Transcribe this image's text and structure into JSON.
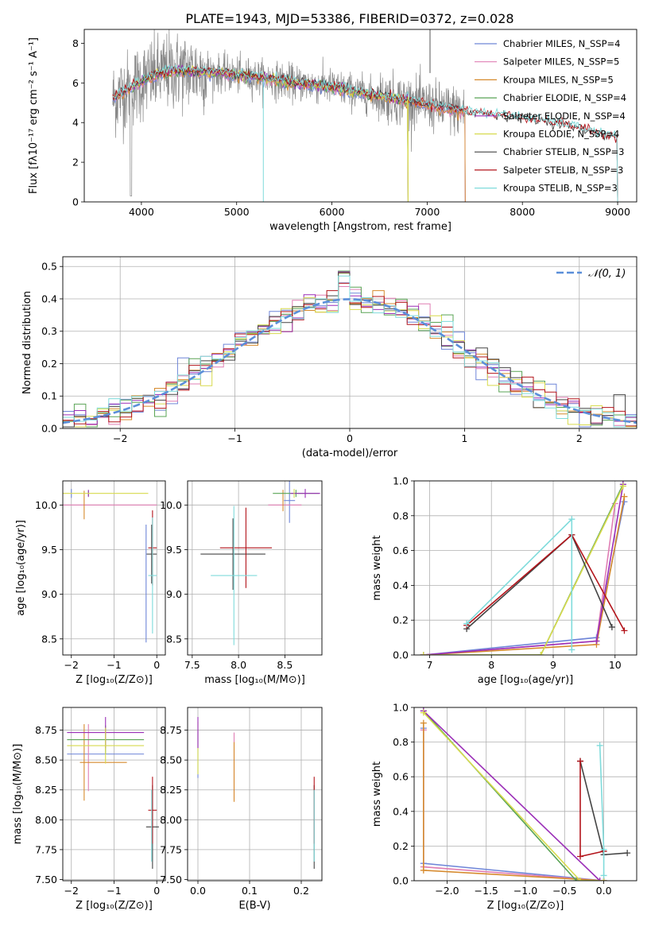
{
  "figure": {
    "title": "PLATE=1943, MJD=53386, FIBERID=0372, z=0.028"
  },
  "series_colors": {
    "Chabrier MILES": "#6f86d8",
    "Salpeter MILES": "#e07fb4",
    "Kroupa MILES": "#d68a2d",
    "Chabrier ELODIE": "#5aa455",
    "Salpeter ELODIE": "#9b2fb8",
    "Kroupa ELODIE": "#d7da4d",
    "Chabrier STELIB": "#444444",
    "Salpeter STELIB": "#b3141b",
    "Kroupa STELIB": "#7fdbdb",
    "data": "#888888",
    "normal": "#5b8fd9"
  },
  "chart_data": [
    {
      "id": "spectrum",
      "type": "line",
      "xlabel": "wavelength [Angstrom, rest frame]",
      "ylabel": "Flux [fλ10⁻¹⁷ erg cm⁻² s⁻¹ A⁻¹]",
      "xlim": [
        3400,
        9200
      ],
      "ylim": [
        0,
        8.7
      ],
      "xticks": [
        4000,
        5000,
        6000,
        7000,
        8000,
        9000
      ],
      "yticks": [
        0,
        2,
        4,
        6,
        8
      ],
      "legend_position": "top-right",
      "legend": [
        "Chabrier MILES, N_SSP=4",
        "Salpeter MILES, N_SSP=5",
        "Kroupa MILES, N_SSP=5",
        "Chabrier ELODIE, N_SSP=4",
        "Salpeter ELODIE, N_SSP=4",
        "Kroupa ELODIE, N_SSP=4",
        "Chabrier STELIB, N_SSP=3",
        "Salpeter STELIB, N_SSP=3",
        "Kroupa STELIB, N_SSP=3"
      ],
      "model_continuum": {
        "x": [
          3700,
          3900,
          4100,
          4300,
          4500,
          4800,
          5200,
          5600,
          6000,
          6400,
          6800,
          7200,
          7600,
          8000,
          8400,
          8800,
          9000
        ],
        "y": [
          5.2,
          5.8,
          6.3,
          6.6,
          6.6,
          6.5,
          6.3,
          6.0,
          5.8,
          5.4,
          5.1,
          4.7,
          4.4,
          4.2,
          3.9,
          3.4,
          3.2
        ]
      },
      "data_range": [
        3700,
        7400
      ],
      "ranges": {
        "MILES": [
          3700,
          7400
        ],
        "ELODIE": [
          3900,
          6800
        ],
        "STELIB": [
          3700,
          9000
        ]
      }
    },
    {
      "id": "residuals",
      "type": "line",
      "xlabel": "(data-model)/error",
      "ylabel": "Normed distribution",
      "xlim": [
        -2.5,
        2.5
      ],
      "ylim": [
        0,
        0.53
      ],
      "xticks": [
        -2,
        -1,
        0,
        1,
        2
      ],
      "xtick_labels": [
        "−2",
        "−1",
        "0",
        "1",
        "2"
      ],
      "yticks": [
        0.0,
        0.1,
        0.2,
        0.3,
        0.4,
        0.5
      ],
      "ytick_labels": [
        "0.0",
        "0.1",
        "0.2",
        "0.3",
        "0.4",
        "0.5"
      ],
      "legend": [
        "𝒩(0, 1)"
      ],
      "legend_position": "top-right",
      "bin_width": 0.1
    },
    {
      "id": "age_vs_Z",
      "type": "scatter",
      "xlabel": "Z [log₁₀(Z/Z⊙)]",
      "ylabel": "age  [log₁₀(age/yr)]",
      "xlim": [
        -2.2,
        0.2
      ],
      "ylim": [
        8.32,
        10.27
      ],
      "xticks": [
        -2,
        -1,
        0
      ],
      "xtick_labels": [
        "−2",
        "−1",
        "0"
      ],
      "yticks": [
        8.5,
        9.0,
        9.5,
        10.0
      ],
      "ytick_labels": [
        "8.5",
        "9.0",
        "9.5",
        "10.0"
      ],
      "points": [
        {
          "s": "Chabrier MILES",
          "x": -2.0,
          "xe": 0.0,
          "y": 10.13,
          "ye": 0.05
        },
        {
          "s": "Salpeter MILES",
          "x": -1.2,
          "xe": 1.2,
          "y": 10.0,
          "ye": 0.0
        },
        {
          "s": "Kroupa MILES",
          "x": -1.7,
          "xe": 0.0,
          "y": 10.0,
          "ye": 0.16
        },
        {
          "s": "Chabrier ELODIE",
          "x": -1.6,
          "xe": 0.0,
          "y": 10.13,
          "ye": 0.03
        },
        {
          "s": "Salpeter ELODIE",
          "x": -1.6,
          "xe": 0.0,
          "y": 10.13,
          "ye": 0.04
        },
        {
          "s": "Kroupa ELODIE",
          "x": -1.2,
          "xe": 1.0,
          "y": 10.13,
          "ye": 0.0
        },
        {
          "s": "Chabrier STELIB",
          "x": -0.12,
          "xe": 0.12,
          "y": 9.45,
          "ye": 0.33
        },
        {
          "s": "Salpeter STELIB",
          "x": -0.1,
          "xe": 0.1,
          "y": 9.52,
          "ye": 0.42
        },
        {
          "s": "Kroupa STELIB",
          "x": -0.1,
          "xe": 0.1,
          "y": 9.21,
          "ye": 0.65
        },
        {
          "s": "Chabrier MILES",
          "x": -0.25,
          "xe": 0.0,
          "y": 9.12,
          "ye": 0.66
        }
      ]
    },
    {
      "id": "age_vs_mass",
      "type": "scatter",
      "xlabel": "mass [log₁₀(M/M⊙)]",
      "ylabel": "",
      "xlim": [
        7.45,
        8.9
      ],
      "ylim": [
        8.32,
        10.27
      ],
      "xticks": [
        7.5,
        8.0,
        8.5
      ],
      "xtick_labels": [
        "7.5",
        "8.0",
        "8.5"
      ],
      "yticks": [
        8.5,
        9.0,
        9.5,
        10.0
      ],
      "ytick_labels": [
        "8.5",
        "9.0",
        "9.5",
        "10.0"
      ],
      "points": [
        {
          "s": "Chabrier MILES",
          "x": 8.55,
          "xe": 0.06,
          "y": 10.05,
          "ye": 0.25
        },
        {
          "s": "Salpeter MILES",
          "x": 8.5,
          "xe": 0.18,
          "y": 10.0,
          "ye": 0.0
        },
        {
          "s": "Kroupa MILES",
          "x": 8.48,
          "xe": 0.0,
          "y": 10.05,
          "ye": 0.12
        },
        {
          "s": "Chabrier ELODIE",
          "x": 8.62,
          "xe": 0.25,
          "y": 10.13,
          "ye": 0.04
        },
        {
          "s": "Salpeter ELODIE",
          "x": 8.72,
          "xe": 0.16,
          "y": 10.13,
          "ye": 0.05
        },
        {
          "s": "Kroupa ELODIE",
          "x": 8.6,
          "xe": 0.0,
          "y": 10.13,
          "ye": 0.05
        },
        {
          "s": "Chabrier STELIB",
          "x": 7.94,
          "xe": 0.35,
          "y": 9.45,
          "ye": 0.4
        },
        {
          "s": "Salpeter STELIB",
          "x": 8.08,
          "xe": 0.28,
          "y": 9.52,
          "ye": 0.45
        },
        {
          "s": "Kroupa STELIB",
          "x": 7.95,
          "xe": 0.25,
          "y": 9.21,
          "ye": 0.78
        }
      ]
    },
    {
      "id": "weight_vs_age",
      "type": "line",
      "xlabel": "age  [log₁₀(age/yr)]",
      "ylabel": "mass weight",
      "xlim": [
        6.75,
        10.35
      ],
      "ylim": [
        0,
        1
      ],
      "xticks": [
        7,
        8,
        9,
        10
      ],
      "xtick_labels": [
        "7",
        "8",
        "9",
        "10"
      ],
      "yticks": [
        0.0,
        0.2,
        0.4,
        0.6,
        0.8,
        1.0
      ],
      "ytick_labels": [
        "0.0",
        "0.2",
        "0.4",
        "0.6",
        "0.8",
        "1.0"
      ],
      "series": [
        {
          "name": "Chabrier MILES",
          "x": [
            6.9,
            9.7,
            10.15
          ],
          "y": [
            0.0,
            0.1,
            0.88
          ]
        },
        {
          "name": "Salpeter MILES",
          "x": [
            6.9,
            9.7,
            10.0
          ],
          "y": [
            0.0,
            0.08,
            0.87
          ]
        },
        {
          "name": "Kroupa MILES",
          "x": [
            6.9,
            9.7,
            10.15
          ],
          "y": [
            0.0,
            0.06,
            0.91
          ]
        },
        {
          "name": "Chabrier ELODIE",
          "x": [
            6.9,
            8.8,
            10.13
          ],
          "y": [
            0.0,
            0.0,
            0.98
          ]
        },
        {
          "name": "Salpeter ELODIE",
          "x": [
            6.9,
            9.7,
            10.13
          ],
          "y": [
            0.0,
            0.08,
            0.98
          ]
        },
        {
          "name": "Kroupa ELODIE",
          "x": [
            6.9,
            8.8,
            10.13
          ],
          "y": [
            0.0,
            0.0,
            0.97
          ]
        },
        {
          "name": "Chabrier STELIB",
          "x": [
            7.6,
            9.3,
            9.95
          ],
          "y": [
            0.15,
            0.69,
            0.16
          ]
        },
        {
          "name": "Salpeter STELIB",
          "x": [
            7.6,
            9.3,
            10.15
          ],
          "y": [
            0.17,
            0.69,
            0.14
          ]
        },
        {
          "name": "Kroupa STELIB",
          "x": [
            7.6,
            9.3,
            9.3
          ],
          "y": [
            0.18,
            0.78,
            0.03
          ]
        }
      ]
    },
    {
      "id": "mass_vs_Z",
      "type": "scatter",
      "xlabel": "Z [log₁₀(Z/Z⊙)]",
      "ylabel": "mass [log₁₀(M/M⊙)]",
      "xlim": [
        -2.2,
        0.2
      ],
      "ylim": [
        7.49,
        8.94
      ],
      "xticks": [
        -2,
        -1,
        0
      ],
      "xtick_labels": [
        "−2",
        "−1",
        "0"
      ],
      "yticks": [
        7.5,
        7.75,
        8.0,
        8.25,
        8.5,
        8.75
      ],
      "ytick_labels": [
        "7.50",
        "7.75",
        "8.00",
        "8.25",
        "8.50",
        "8.75"
      ],
      "points": [
        {
          "s": "Chabrier MILES",
          "x": -1.2,
          "xe": 0.9,
          "y": 8.55,
          "ye": 0.0
        },
        {
          "s": "Salpeter MILES",
          "x": -1.6,
          "xe": 0.0,
          "y": 8.52,
          "ye": 0.28
        },
        {
          "s": "Kroupa MILES",
          "x": -1.25,
          "xe": 0.55,
          "y": 8.48,
          "ye": 0.0
        },
        {
          "s": "Kroupa MILES",
          "x": -1.7,
          "xe": 0.0,
          "y": 8.48,
          "ye": 0.32
        },
        {
          "s": "Chabrier ELODIE",
          "x": -1.2,
          "xe": 0.9,
          "y": 8.67,
          "ye": 0.12
        },
        {
          "s": "Salpeter ELODIE",
          "x": -1.2,
          "xe": 0.9,
          "y": 8.73,
          "ye": 0.13
        },
        {
          "s": "Kroupa ELODIE",
          "x": -1.2,
          "xe": 0.9,
          "y": 8.62,
          "ye": 0.15
        },
        {
          "s": "Chabrier STELIB",
          "x": -0.1,
          "xe": 0.15,
          "y": 7.94,
          "ye": 0.35
        },
        {
          "s": "Salpeter STELIB",
          "x": -0.1,
          "xe": 0.1,
          "y": 8.08,
          "ye": 0.28
        },
        {
          "s": "Kroupa STELIB",
          "x": -0.12,
          "xe": 0.0,
          "y": 7.95,
          "ye": 0.3
        }
      ]
    },
    {
      "id": "mass_vs_EBV",
      "type": "scatter",
      "xlabel": "E(B-V)",
      "ylabel": "",
      "xlim": [
        -0.02,
        0.24
      ],
      "ylim": [
        7.49,
        8.94
      ],
      "xticks": [
        0.0,
        0.1,
        0.2
      ],
      "xtick_labels": [
        "0.0",
        "0.1",
        "0.2"
      ],
      "yticks": [
        7.5,
        7.75,
        8.0,
        8.25,
        8.5,
        8.75
      ],
      "ytick_labels": [
        "7.50",
        "7.75",
        "8.00",
        "8.25",
        "8.50",
        "8.75"
      ],
      "points": [
        {
          "s": "Chabrier MILES",
          "x": 0.0,
          "xe": 0.0,
          "y": 8.55,
          "ye": 0.2
        },
        {
          "s": "Kroupa ELODIE",
          "x": 0.0,
          "xe": 0.0,
          "y": 8.6,
          "ye": 0.22
        },
        {
          "s": "Salpeter ELODIE",
          "x": 0.0,
          "xe": 0.0,
          "y": 8.73,
          "ye": 0.13
        },
        {
          "s": "Salpeter MILES",
          "x": 0.07,
          "xe": 0.0,
          "y": 8.45,
          "ye": 0.28
        },
        {
          "s": "Kroupa MILES",
          "x": 0.07,
          "xe": 0.0,
          "y": 8.4,
          "ye": 0.25
        },
        {
          "s": "Chabrier STELIB",
          "x": 0.225,
          "xe": 0.0,
          "y": 7.94,
          "ye": 0.35
        },
        {
          "s": "Salpeter STELIB",
          "x": 0.225,
          "xe": 0.0,
          "y": 8.08,
          "ye": 0.28
        },
        {
          "s": "Kroupa STELIB",
          "x": 0.225,
          "xe": 0.0,
          "y": 7.95,
          "ye": 0.3
        }
      ]
    },
    {
      "id": "weight_vs_Z",
      "type": "line",
      "xlabel": "Z [log₁₀(Z/Z⊙)]",
      "ylabel": "mass weight",
      "xlim": [
        -2.42,
        0.42
      ],
      "ylim": [
        0,
        1
      ],
      "xticks": [
        -2.0,
        -1.5,
        -1.0,
        -0.5,
        0.0
      ],
      "xtick_labels": [
        "−2.0",
        "−1.5",
        "−1.0",
        "−0.5",
        "0.0"
      ],
      "yticks": [
        0.0,
        0.2,
        0.4,
        0.6,
        0.8,
        1.0
      ],
      "ytick_labels": [
        "0.0",
        "0.2",
        "0.4",
        "0.6",
        "0.8",
        "1.0"
      ],
      "series": [
        {
          "name": "Chabrier MILES",
          "x": [
            -2.3,
            -2.3,
            0.0
          ],
          "y": [
            0.88,
            0.1,
            0.0
          ]
        },
        {
          "name": "Salpeter MILES",
          "x": [
            -2.3,
            -2.3,
            0.0
          ],
          "y": [
            0.87,
            0.08,
            0.0
          ]
        },
        {
          "name": "Kroupa MILES",
          "x": [
            -2.3,
            -2.3,
            0.0
          ],
          "y": [
            0.91,
            0.06,
            0.0
          ]
        },
        {
          "name": "Chabrier ELODIE",
          "x": [
            -2.3,
            -0.35,
            0.0
          ],
          "y": [
            0.98,
            0.0,
            0.0
          ]
        },
        {
          "name": "Salpeter ELODIE",
          "x": [
            -2.3,
            -0.05,
            0.0
          ],
          "y": [
            0.98,
            0.0,
            0.0
          ]
        },
        {
          "name": "Kroupa ELODIE",
          "x": [
            -2.3,
            -0.3,
            0.0
          ],
          "y": [
            0.97,
            0.0,
            0.0
          ]
        },
        {
          "name": "Chabrier STELIB",
          "x": [
            -0.3,
            0.0,
            0.3
          ],
          "y": [
            0.69,
            0.15,
            0.16
          ]
        },
        {
          "name": "Salpeter STELIB",
          "x": [
            -0.3,
            -0.3,
            0.0
          ],
          "y": [
            0.69,
            0.14,
            0.17
          ]
        },
        {
          "name": "Kroupa STELIB",
          "x": [
            -0.05,
            0.0,
            0.0
          ],
          "y": [
            0.78,
            0.18,
            0.03
          ]
        }
      ]
    }
  ]
}
